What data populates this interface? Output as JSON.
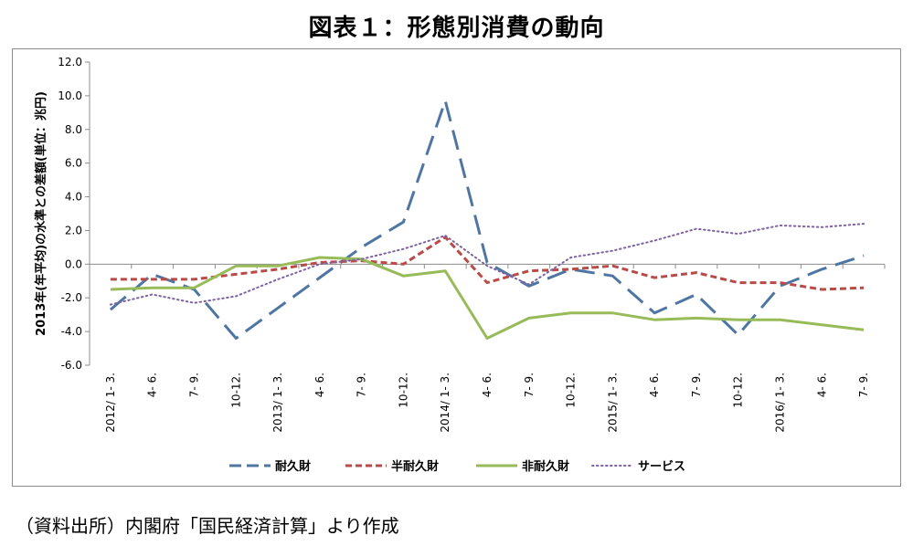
{
  "title": "図表１：形態別消費の動向",
  "source": "（資料出所）内閣府「国民経済計算」より作成",
  "chart_data": {
    "type": "line",
    "title": "図表１：形態別消費の動向",
    "ylabel": "2013年(年平均)の水準との差額(単位：兆円)",
    "xlabel": "",
    "ylim": [
      -6.0,
      12.0
    ],
    "yticks": [
      "12.0",
      "10.0",
      "8.0",
      "6.0",
      "4.0",
      "2.0",
      "0.0",
      "-2.0",
      "-4.0",
      "-6.0"
    ],
    "categories": [
      "2012/ 1- 3.",
      "4- 6.",
      "7- 9.",
      "10-12.",
      "2013/ 1- 3.",
      "4- 6.",
      "7- 9.",
      "10-12.",
      "2014/ 1- 3.",
      "4- 6.",
      "7- 9.",
      "10-12.",
      "2015/ 1- 3.",
      "4- 6.",
      "7- 9.",
      "10-12.",
      "2016/ 1- 3.",
      "4- 6.",
      "7- 9."
    ],
    "legend_position": "bottom",
    "series": [
      {
        "name": "耐久財",
        "color": "#4f76a3",
        "style": "long-dash",
        "values": [
          -2.7,
          -0.6,
          -1.5,
          -4.4,
          -2.6,
          -0.8,
          1.0,
          2.5,
          9.7,
          0.1,
          -1.3,
          -0.3,
          -0.7,
          -2.9,
          -1.8,
          -4.2,
          -1.3,
          -0.3,
          0.5
        ]
      },
      {
        "name": "半耐久財",
        "color": "#b84a47",
        "style": "short-dash",
        "values": [
          -0.9,
          -0.9,
          -0.9,
          -0.6,
          -0.3,
          0.1,
          0.2,
          0.0,
          1.6,
          -1.1,
          -0.4,
          -0.3,
          -0.1,
          -0.8,
          -0.5,
          -1.1,
          -1.1,
          -1.5,
          -1.4
        ]
      },
      {
        "name": "非耐久財",
        "color": "#98bb59",
        "style": "solid",
        "values": [
          -1.5,
          -1.4,
          -1.4,
          -0.1,
          -0.1,
          0.4,
          0.3,
          -0.7,
          -0.4,
          -4.4,
          -3.2,
          -2.9,
          -2.9,
          -3.3,
          -3.2,
          -3.3,
          -3.3,
          -3.6,
          -3.9
        ]
      },
      {
        "name": "サービス",
        "color": "#7e62a1",
        "style": "dotted",
        "values": [
          -2.4,
          -1.8,
          -2.3,
          -1.9,
          -0.9,
          0.0,
          0.3,
          0.9,
          1.7,
          -0.1,
          -1.2,
          0.4,
          0.8,
          1.4,
          2.1,
          1.8,
          2.3,
          2.2,
          2.4
        ]
      }
    ]
  }
}
